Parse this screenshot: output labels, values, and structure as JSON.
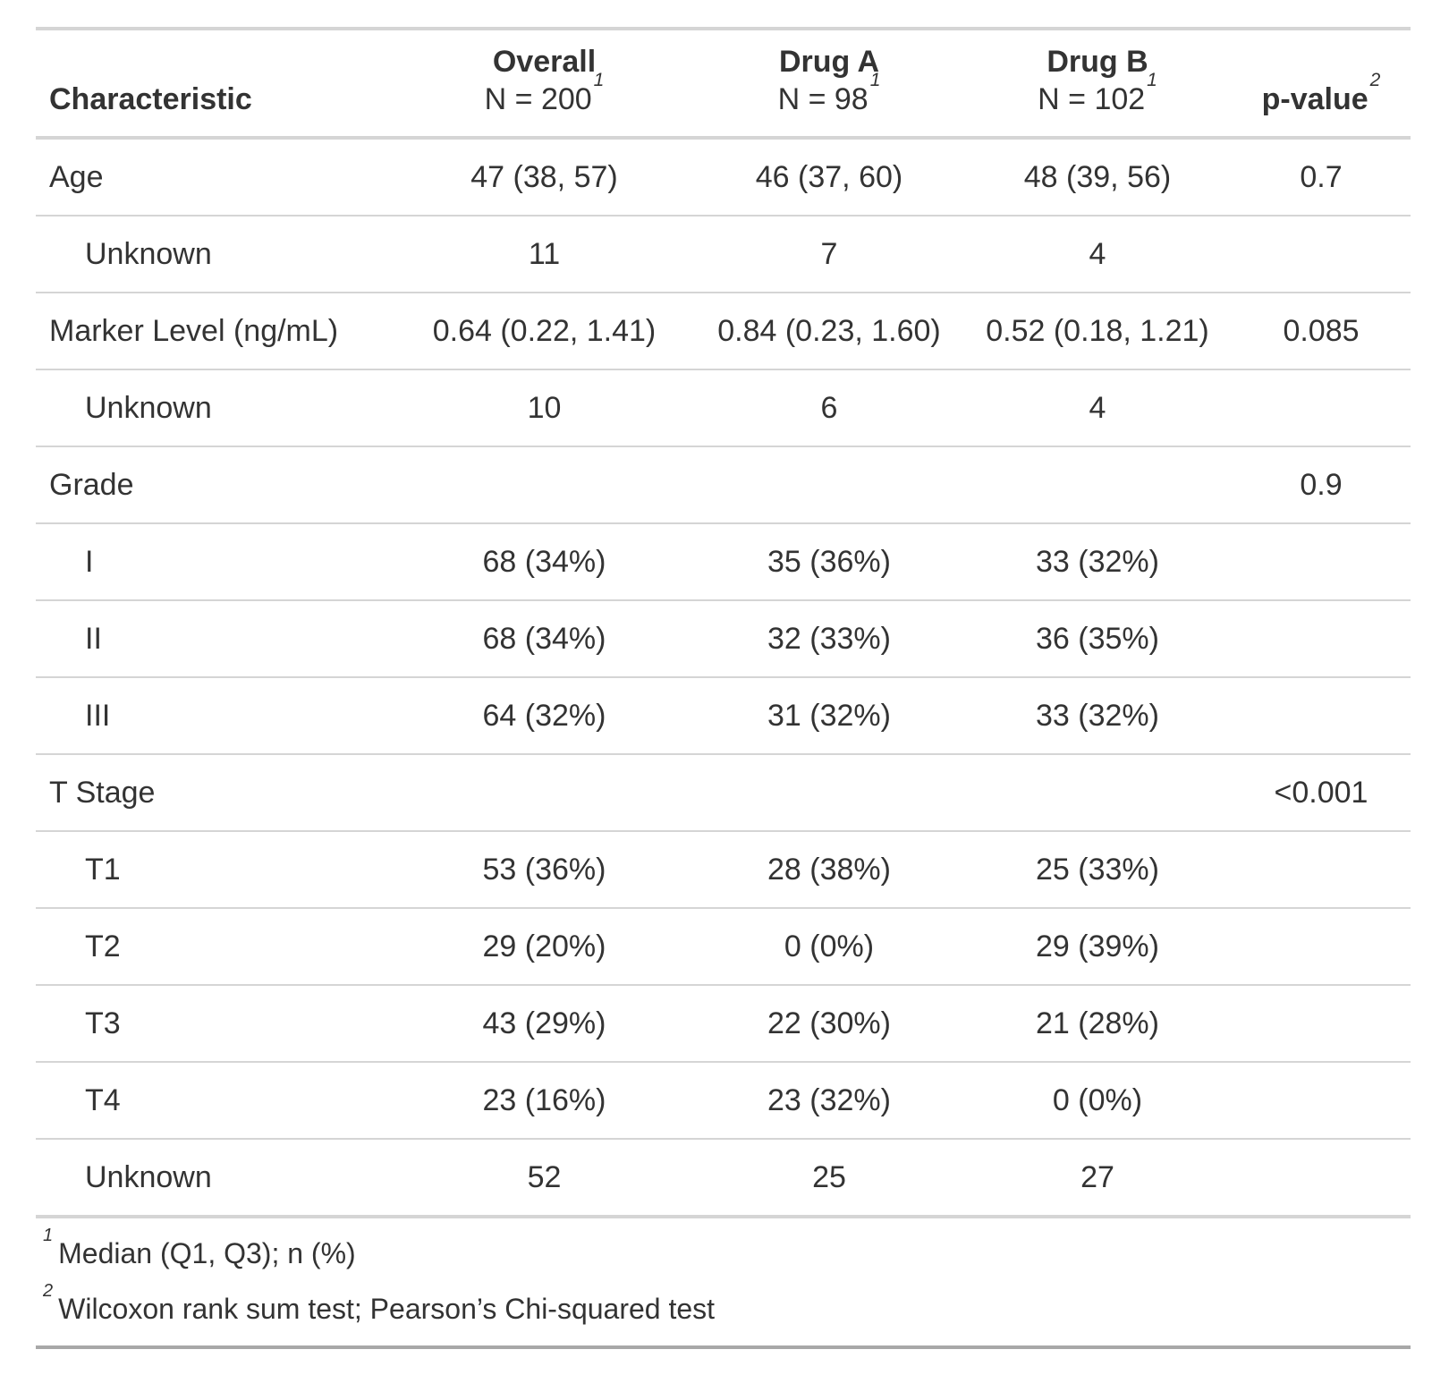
{
  "colors": {
    "text": "#333333",
    "rule_light": "#d5d5d5",
    "rule_dark": "#a8a8a8",
    "background": "#ffffff"
  },
  "chart_data": {
    "type": "table",
    "header": {
      "characteristic_label": "Characteristic",
      "groups": [
        {
          "key": "overall",
          "label": "Overall",
          "n_label": "N = 200",
          "footnote_mark": "1"
        },
        {
          "key": "drug_a",
          "label": "Drug A",
          "n_label": "N = 98",
          "footnote_mark": "1"
        },
        {
          "key": "drug_b",
          "label": "Drug B",
          "n_label": "N = 102",
          "footnote_mark": "1"
        }
      ],
      "p_value_label": "p-value",
      "p_value_footnote_mark": "2"
    },
    "rows": [
      {
        "label": "Age",
        "indent": false,
        "overall": "47 (38, 57)",
        "drug_a": "46 (37, 60)",
        "drug_b": "48 (39, 56)",
        "p_value": "0.7"
      },
      {
        "label": "Unknown",
        "indent": true,
        "overall": "11",
        "drug_a": "7",
        "drug_b": "4",
        "p_value": ""
      },
      {
        "label": "Marker Level (ng/mL)",
        "indent": false,
        "overall": "0.64 (0.22, 1.41)",
        "drug_a": "0.84 (0.23, 1.60)",
        "drug_b": "0.52 (0.18, 1.21)",
        "p_value": "0.085"
      },
      {
        "label": "Unknown",
        "indent": true,
        "overall": "10",
        "drug_a": "6",
        "drug_b": "4",
        "p_value": ""
      },
      {
        "label": "Grade",
        "indent": false,
        "overall": "",
        "drug_a": "",
        "drug_b": "",
        "p_value": "0.9"
      },
      {
        "label": "I",
        "indent": true,
        "overall": "68 (34%)",
        "drug_a": "35 (36%)",
        "drug_b": "33 (32%)",
        "p_value": ""
      },
      {
        "label": "II",
        "indent": true,
        "overall": "68 (34%)",
        "drug_a": "32 (33%)",
        "drug_b": "36 (35%)",
        "p_value": ""
      },
      {
        "label": "III",
        "indent": true,
        "overall": "64 (32%)",
        "drug_a": "31 (32%)",
        "drug_b": "33 (32%)",
        "p_value": ""
      },
      {
        "label": "T Stage",
        "indent": false,
        "overall": "",
        "drug_a": "",
        "drug_b": "",
        "p_value": "<0.001"
      },
      {
        "label": "T1",
        "indent": true,
        "overall": "53 (36%)",
        "drug_a": "28 (38%)",
        "drug_b": "25 (33%)",
        "p_value": ""
      },
      {
        "label": "T2",
        "indent": true,
        "overall": "29 (20%)",
        "drug_a": "0 (0%)",
        "drug_b": "29 (39%)",
        "p_value": ""
      },
      {
        "label": "T3",
        "indent": true,
        "overall": "43 (29%)",
        "drug_a": "22 (30%)",
        "drug_b": "21 (28%)",
        "p_value": ""
      },
      {
        "label": "T4",
        "indent": true,
        "overall": "23 (16%)",
        "drug_a": "23 (32%)",
        "drug_b": "0 (0%)",
        "p_value": ""
      },
      {
        "label": "Unknown",
        "indent": true,
        "overall": "52",
        "drug_a": "25",
        "drug_b": "27",
        "p_value": ""
      }
    ],
    "footnotes": [
      {
        "mark": "1",
        "text": "Median (Q1, Q3); n (%)"
      },
      {
        "mark": "2",
        "text": "Wilcoxon rank sum test; Pearson’s Chi-squared test"
      }
    ]
  }
}
